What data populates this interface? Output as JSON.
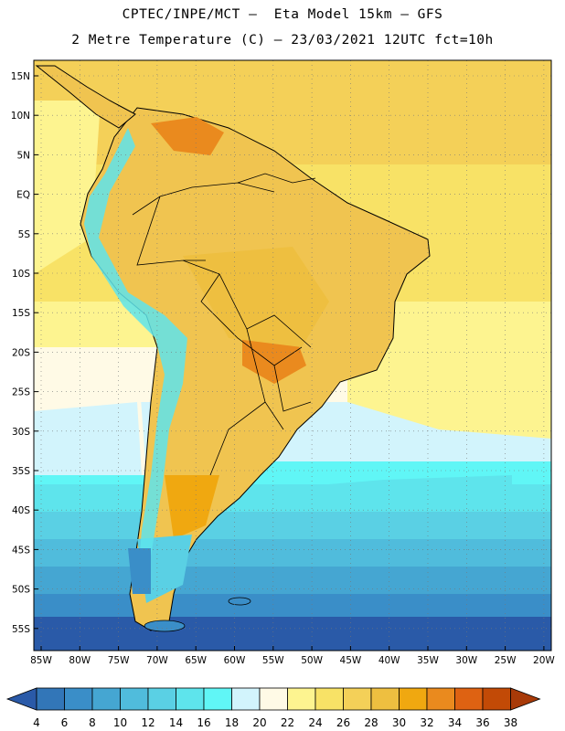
{
  "header": {
    "line1": "CPTEC/INPE/MCT –  Eta Model 15km – GFS",
    "line2": "2 Metre Temperature (C) – 23/03/2021 12UTC fct=10h"
  },
  "map": {
    "region": "South America",
    "lat_labels": [
      "15N",
      "10N",
      "5N",
      "EQ",
      "5S",
      "10S",
      "15S",
      "20S",
      "25S",
      "30S",
      "35S",
      "40S",
      "45S",
      "50S",
      "55S"
    ],
    "lon_labels": [
      "85W",
      "80W",
      "75W",
      "70W",
      "65W",
      "60W",
      "55W",
      "50W",
      "45W",
      "40W",
      "35W",
      "30W",
      "25W",
      "20W"
    ],
    "grid": "dotted"
  },
  "colorbar": {
    "labels": [
      "4",
      "6",
      "8",
      "10",
      "12",
      "14",
      "16",
      "18",
      "20",
      "22",
      "24",
      "26",
      "28",
      "30",
      "32",
      "34",
      "36",
      "38"
    ],
    "colors": [
      "#2a5aa8",
      "#3276b8",
      "#3a8ec8",
      "#45a6d2",
      "#50bcdc",
      "#5ad0e4",
      "#5ee4ec",
      "#60f6f6",
      "#d2f4fc",
      "#fffae6",
      "#fdf490",
      "#f8e266",
      "#f4d058",
      "#eebf40",
      "#f0a810",
      "#ea8a1e",
      "#de6212",
      "#c24a06",
      "#a83a08"
    ]
  }
}
